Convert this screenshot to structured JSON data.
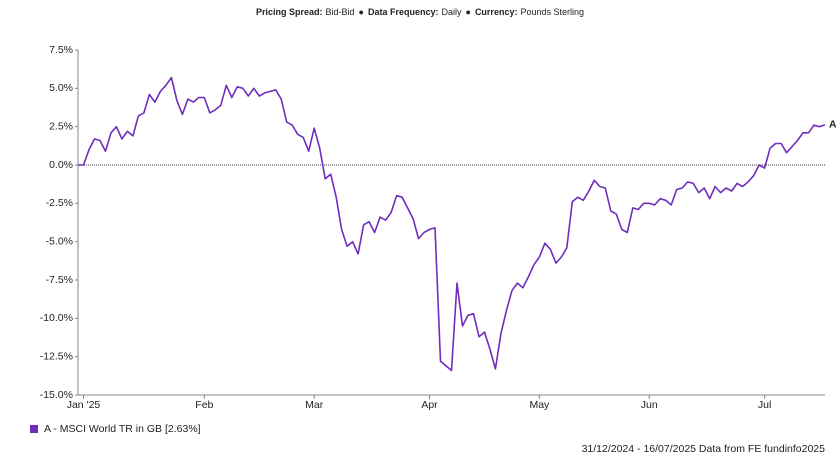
{
  "chart_data": {
    "type": "line",
    "header": [
      {
        "label": "Pricing Spread:",
        "value": "Bid-Bid"
      },
      {
        "label": "Data Frequency:",
        "value": "Daily"
      },
      {
        "label": "Currency:",
        "value": "Pounds Sterling"
      }
    ],
    "separator": "●",
    "categories": [
      null,
      "Jan '25",
      null,
      null,
      null,
      null,
      null,
      null,
      null,
      null,
      null,
      null,
      null,
      null,
      null,
      null,
      null,
      null,
      null,
      null,
      null,
      null,
      null,
      "Feb",
      null,
      null,
      null,
      null,
      null,
      null,
      null,
      null,
      null,
      null,
      null,
      null,
      null,
      null,
      null,
      null,
      null,
      null,
      null,
      "Mar",
      null,
      null,
      null,
      null,
      null,
      null,
      null,
      null,
      null,
      null,
      null,
      null,
      null,
      null,
      null,
      null,
      null,
      null,
      null,
      null,
      "Apr",
      null,
      null,
      null,
      null,
      null,
      null,
      null,
      null,
      null,
      null,
      null,
      null,
      null,
      null,
      null,
      null,
      null,
      null,
      null,
      "May",
      null,
      null,
      null,
      null,
      null,
      null,
      null,
      null,
      null,
      null,
      null,
      null,
      null,
      null,
      null,
      null,
      null,
      null,
      null,
      "Jun",
      null,
      null,
      null,
      null,
      null,
      null,
      null,
      null,
      null,
      null,
      null,
      null,
      null,
      null,
      null,
      null,
      null,
      null,
      null,
      null,
      "Jul",
      null,
      null,
      null,
      null,
      null,
      null,
      null,
      null,
      null,
      null,
      null
    ],
    "series": [
      {
        "name": "A - MSCI World TR in GB [2.63%]",
        "end_label": "A",
        "color": "#6f2dbd",
        "values": [
          0,
          0,
          1.0,
          1.7,
          1.6,
          0.9,
          2.1,
          2.5,
          1.7,
          2.2,
          1.9,
          3.2,
          3.4,
          4.6,
          4.1,
          4.8,
          5.2,
          5.7,
          4.2,
          3.3,
          4.3,
          4.1,
          4.4,
          4.4,
          3.4,
          3.6,
          3.9,
          5.2,
          4.4,
          5.1,
          5.0,
          4.5,
          5.0,
          4.5,
          4.7,
          4.8,
          4.9,
          4.3,
          2.8,
          2.6,
          2.0,
          1.8,
          0.9,
          2.4,
          1.1,
          -0.9,
          -0.6,
          -2.1,
          -4.2,
          -5.3,
          -5.0,
          -5.8,
          -3.9,
          -3.7,
          -4.4,
          -3.4,
          -3.6,
          -3.1,
          -2.0,
          -2.1,
          -2.8,
          -3.5,
          -4.8,
          -4.4,
          -4.2,
          -4.1,
          -12.8,
          -13.1,
          -13.4,
          -7.7,
          -10.5,
          -9.8,
          -9.7,
          -11.2,
          -10.9,
          -12.0,
          -13.3,
          -11.0,
          -9.5,
          -8.2,
          -7.7,
          -8.0,
          -7.3,
          -6.5,
          -6.0,
          -5.1,
          -5.5,
          -6.4,
          -6.0,
          -5.4,
          -2.4,
          -2.1,
          -2.3,
          -1.7,
          -1.0,
          -1.4,
          -1.5,
          -3.0,
          -3.2,
          -4.2,
          -4.4,
          -2.8,
          -2.9,
          -2.5,
          -2.5,
          -2.6,
          -2.2,
          -2.3,
          -2.6,
          -1.6,
          -1.5,
          -1.1,
          -1.2,
          -1.8,
          -1.5,
          -2.2,
          -1.4,
          -1.8,
          -1.5,
          -1.7,
          -1.2,
          -1.4,
          -1.1,
          -0.7,
          0.0,
          -0.2,
          1.1,
          1.4,
          1.4,
          0.8,
          1.2,
          1.6,
          2.1,
          2.1,
          2.6,
          2.5,
          2.63
        ]
      }
    ],
    "ylim": [
      -15,
      7.5
    ],
    "yticks": [
      {
        "value": 7.5,
        "label": "7.5%"
      },
      {
        "value": 5,
        "label": "5.0%"
      },
      {
        "value": 2.5,
        "label": "2.5%"
      },
      {
        "value": 0,
        "label": "0.0%"
      },
      {
        "value": -2.5,
        "label": "-2.5%"
      },
      {
        "value": -5,
        "label": "-5.0%"
      },
      {
        "value": -7.5,
        "label": "-7.5%"
      },
      {
        "value": -10,
        "label": "-10.0%"
      },
      {
        "value": -12.5,
        "label": "-12.5%"
      },
      {
        "value": -15,
        "label": "-15.0%"
      }
    ],
    "zero_line": true,
    "footer": "31/12/2024 - 16/07/2025 Data from FE fundinfo2025"
  }
}
